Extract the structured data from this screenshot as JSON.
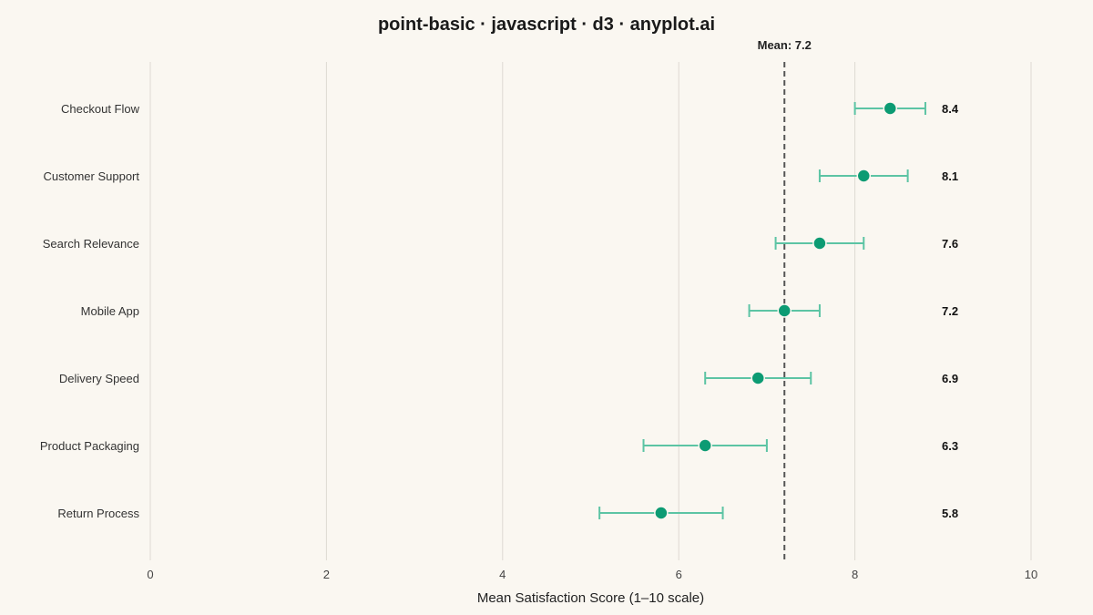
{
  "chart_data": {
    "type": "scatter",
    "title": "point-basic · javascript · d3 · anyplot.ai",
    "xlabel": "Mean Satisfaction Score (1–10 scale)",
    "ylabel": "",
    "xlim": [
      0,
      10
    ],
    "x_ticks": [
      0,
      2,
      4,
      6,
      8,
      10
    ],
    "grid": "vertical",
    "categories": [
      "Checkout Flow",
      "Customer Support",
      "Search Relevance",
      "Mobile App",
      "Delivery Speed",
      "Product Packaging",
      "Return Process"
    ],
    "series": [
      {
        "values": [
          8.4,
          8.1,
          7.6,
          7.2,
          6.9,
          6.3,
          5.8
        ],
        "error_low": [
          8.0,
          7.6,
          7.1,
          6.8,
          6.3,
          5.6,
          5.1
        ],
        "error_high": [
          8.8,
          8.6,
          8.1,
          7.6,
          7.5,
          7.0,
          6.5
        ]
      }
    ],
    "value_labels": [
      "8.4",
      "8.1",
      "7.6",
      "7.2",
      "6.9",
      "6.3",
      "5.8"
    ],
    "reference_line": {
      "value": 7.2,
      "label": "Mean: 7.2",
      "style": "dashed"
    },
    "colors": {
      "point": "#0C9B73",
      "errorbar": "#5CC4A4",
      "grid": "#DEDAD2",
      "reference": "#555555",
      "background": "#FAF7F1"
    }
  }
}
